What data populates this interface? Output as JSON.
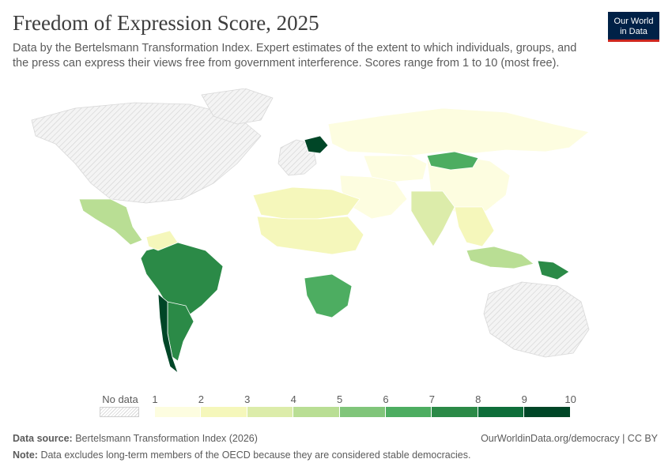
{
  "header": {
    "title": "Freedom of Expression Score, 2025",
    "subtitle": "Data by the Bertelsmann Transformation Index. Expert estimates of the extent to which individuals, groups, and the press can express their views free from government interference. Scores range from 1 to 10 (most free).",
    "logo_line1": "Our World",
    "logo_line2": "in Data"
  },
  "legend": {
    "no_data_label": "No data",
    "ticks": [
      "1",
      "2",
      "3",
      "4",
      "5",
      "6",
      "7",
      "8",
      "9",
      "10"
    ],
    "colors": [
      "#fdfde0",
      "#f5f7bb",
      "#dcecaa",
      "#b9de94",
      "#80c57a",
      "#4dad61",
      "#2b8a47",
      "#0f6e3a",
      "#004627"
    ],
    "no_data_color": "#e2e2e2"
  },
  "map_colors": {
    "ocean": "#ffffff",
    "border": "#ffffff",
    "no_data": "#f0f0f0",
    "no_data_hatch": "#d2d2d2"
  },
  "map_regions": [
    {
      "name": "Canada & US (no data)",
      "score": null
    },
    {
      "name": "Greenland (no data)",
      "score": null
    },
    {
      "name": "Western Europe (no data)",
      "score": null
    },
    {
      "name": "Australia (no data)",
      "score": null
    },
    {
      "name": "Russia",
      "score": 1.5
    },
    {
      "name": "China",
      "score": 1.2
    },
    {
      "name": "Mongolia",
      "score": 6.5
    },
    {
      "name": "Central Asia",
      "score": 1.5
    },
    {
      "name": "India",
      "score": 3.5
    },
    {
      "name": "Middle East",
      "score": 1.5
    },
    {
      "name": "Southeast Asia",
      "score": 2.5
    },
    {
      "name": "Indonesia",
      "score": 4.5
    },
    {
      "name": "Papua New Guinea",
      "score": 7.5
    },
    {
      "name": "Mexico",
      "score": 4.5
    },
    {
      "name": "Brazil",
      "score": 7.0
    },
    {
      "name": "Argentina",
      "score": 7.0
    },
    {
      "name": "Chile",
      "score": 9.2
    },
    {
      "name": "Venezuela",
      "score": 2.0
    },
    {
      "name": "North Africa",
      "score": 2.5
    },
    {
      "name": "Sahel",
      "score": 2.5
    },
    {
      "name": "Southern Africa",
      "score": 6.5
    },
    {
      "name": "Poland & Baltics",
      "score": 9.5
    }
  ],
  "footer": {
    "source_label": "Data source:",
    "source_text": "Bertelsmann Transformation Index (2026)",
    "license": "OurWorldinData.org/democracy | CC BY",
    "note_label": "Note:",
    "note_text": "Data excludes long-term members of the OECD because they are considered stable democracies."
  }
}
